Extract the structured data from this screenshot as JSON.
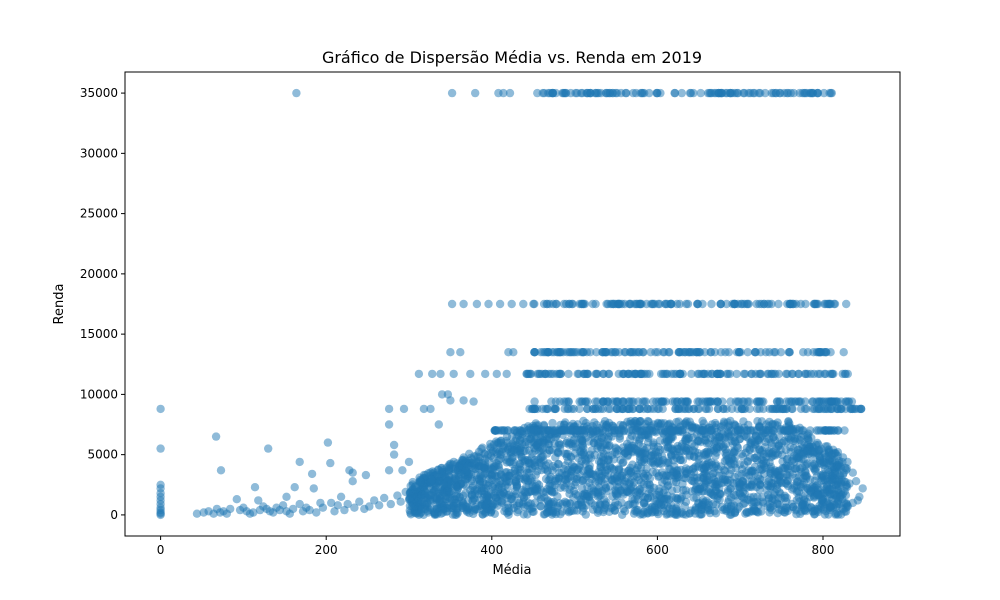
{
  "chart_data": {
    "type": "scatter",
    "title": "Gráfico de Dispersão Média vs. Renda em 2019",
    "xlabel": "Média",
    "ylabel": "Renda",
    "xlim": [
      -43,
      893
    ],
    "ylim": [
      -1750,
      36750
    ],
    "xticks": [
      0,
      200,
      400,
      600,
      800
    ],
    "xtick_labels": [
      "0",
      "200",
      "400",
      "600",
      "800"
    ],
    "yticks": [
      0,
      5000,
      10000,
      15000,
      20000,
      25000,
      30000,
      35000
    ],
    "ytick_labels": [
      "0",
      "5000",
      "10000",
      "15000",
      "20000",
      "25000",
      "30000",
      "35000"
    ],
    "grid": false,
    "marker_color": "#1f77b4",
    "marker_alpha": 0.5,
    "dense_regions": [
      {
        "x": [
          300,
          830
        ],
        "y": [
          0,
          7800
        ],
        "description": "dense cluster of points"
      },
      {
        "x": [
          460,
          815
        ],
        "y": [
          35000,
          35000
        ]
      },
      {
        "x": [
          450,
          815
        ],
        "y": [
          17500,
          17500
        ]
      },
      {
        "x": [
          450,
          810
        ],
        "y": [
          13500,
          13500
        ]
      },
      {
        "x": [
          440,
          830
        ],
        "y": [
          11700,
          11700
        ]
      },
      {
        "x": [
          450,
          840
        ],
        "y": [
          9400,
          9400
        ]
      },
      {
        "x": [
          440,
          850
        ],
        "y": [
          8800,
          8800
        ]
      },
      {
        "x": [
          400,
          830
        ],
        "y": [
          7000,
          7000
        ]
      }
    ],
    "points": [
      [
        0,
        8800
      ],
      [
        0,
        5500
      ],
      [
        0,
        2500
      ],
      [
        0,
        2200
      ],
      [
        0,
        1800
      ],
      [
        0,
        1500
      ],
      [
        0,
        1200
      ],
      [
        0,
        900
      ],
      [
        0,
        600
      ],
      [
        0,
        400
      ],
      [
        0,
        200
      ],
      [
        0,
        100
      ],
      [
        0,
        0
      ],
      [
        164,
        35000
      ],
      [
        352,
        35000
      ],
      [
        380,
        35000
      ],
      [
        408,
        35000
      ],
      [
        414,
        35000
      ],
      [
        422,
        35000
      ],
      [
        455,
        35000
      ],
      [
        470,
        35000
      ],
      [
        352,
        17500
      ],
      [
        366,
        17500
      ],
      [
        382,
        17500
      ],
      [
        396,
        17500
      ],
      [
        410,
        17500
      ],
      [
        424,
        17500
      ],
      [
        438,
        17500
      ],
      [
        828,
        17500
      ],
      [
        350,
        13500
      ],
      [
        362,
        13500
      ],
      [
        420,
        13500
      ],
      [
        426,
        13500
      ],
      [
        462,
        13500
      ],
      [
        482,
        13500
      ],
      [
        508,
        13500
      ],
      [
        825,
        13500
      ],
      [
        312,
        11700
      ],
      [
        328,
        11700
      ],
      [
        338,
        11700
      ],
      [
        354,
        11700
      ],
      [
        374,
        11700
      ],
      [
        392,
        11700
      ],
      [
        406,
        11700
      ],
      [
        418,
        11700
      ],
      [
        830,
        11700
      ],
      [
        340,
        10000
      ],
      [
        347,
        10000
      ],
      [
        366,
        9500
      ],
      [
        350,
        9500
      ],
      [
        378,
        9400
      ],
      [
        846,
        8800
      ],
      [
        838,
        8800
      ],
      [
        276,
        8800
      ],
      [
        294,
        8800
      ],
      [
        318,
        8800
      ],
      [
        326,
        8800
      ],
      [
        276,
        7500
      ],
      [
        336,
        7500
      ],
      [
        67,
        6500
      ],
      [
        73,
        3700
      ],
      [
        130,
        5500
      ],
      [
        168,
        4400
      ],
      [
        202,
        6000
      ],
      [
        205,
        4300
      ],
      [
        183,
        3400
      ],
      [
        228,
        3700
      ],
      [
        232,
        3500
      ],
      [
        232,
        2800
      ],
      [
        248,
        3300
      ],
      [
        276,
        3700
      ],
      [
        282,
        5000
      ],
      [
        282,
        5800
      ],
      [
        292,
        3700
      ],
      [
        300,
        4400
      ],
      [
        114,
        2300
      ],
      [
        118,
        1200
      ],
      [
        92,
        1300
      ],
      [
        84,
        500
      ],
      [
        162,
        2300
      ],
      [
        152,
        1500
      ],
      [
        185,
        2200
      ],
      [
        193,
        1000
      ],
      [
        206,
        1000
      ],
      [
        218,
        1500
      ],
      [
        44,
        100
      ],
      [
        52,
        200
      ],
      [
        58,
        300
      ],
      [
        64,
        100
      ],
      [
        68,
        500
      ],
      [
        72,
        200
      ],
      [
        76,
        300
      ],
      [
        80,
        100
      ],
      [
        96,
        400
      ],
      [
        100,
        600
      ],
      [
        104,
        300
      ],
      [
        108,
        100
      ],
      [
        112,
        200
      ],
      [
        120,
        400
      ],
      [
        124,
        700
      ],
      [
        128,
        500
      ],
      [
        132,
        300
      ],
      [
        136,
        200
      ],
      [
        140,
        600
      ],
      [
        144,
        400
      ],
      [
        148,
        800
      ],
      [
        152,
        300
      ],
      [
        156,
        100
      ],
      [
        160,
        500
      ],
      [
        168,
        900
      ],
      [
        172,
        300
      ],
      [
        176,
        600
      ],
      [
        180,
        400
      ],
      [
        188,
        200
      ],
      [
        196,
        600
      ],
      [
        210,
        300
      ],
      [
        214,
        800
      ],
      [
        222,
        400
      ],
      [
        226,
        900
      ],
      [
        234,
        600
      ],
      [
        240,
        1100
      ],
      [
        246,
        500
      ],
      [
        252,
        700
      ],
      [
        258,
        1200
      ],
      [
        264,
        800
      ],
      [
        270,
        1400
      ],
      [
        278,
        900
      ],
      [
        286,
        1600
      ],
      [
        290,
        1100
      ],
      [
        296,
        1900
      ],
      [
        302,
        2400
      ],
      [
        308,
        2100
      ],
      [
        314,
        2800
      ],
      [
        320,
        3300
      ],
      [
        836,
        3500
      ],
      [
        840,
        2800
      ],
      [
        844,
        1500
      ],
      [
        848,
        2200
      ],
      [
        842,
        1200
      ],
      [
        836,
        1000
      ],
      [
        832,
        2600
      ],
      [
        828,
        600
      ],
      [
        820,
        4100
      ],
      [
        818,
        5200
      ]
    ]
  }
}
